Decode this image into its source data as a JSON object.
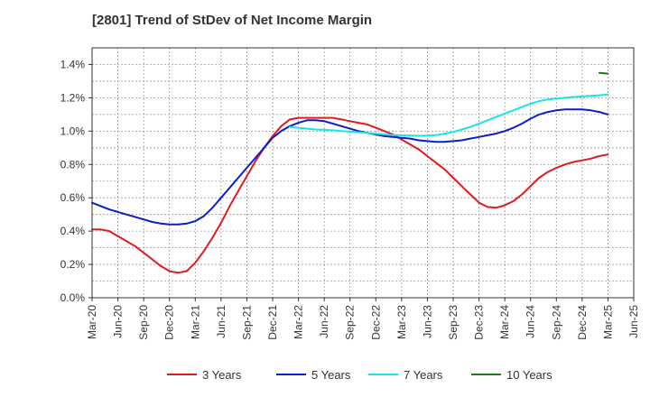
{
  "chart_data": {
    "type": "line",
    "title": "[2801]  Trend of StDev of Net Income Margin",
    "xlabel": "",
    "ylabel": "",
    "x_ticks": [
      "Mar-20",
      "Jun-20",
      "Sep-20",
      "Dec-20",
      "Mar-21",
      "Jun-21",
      "Sep-21",
      "Dec-21",
      "Mar-22",
      "Jun-22",
      "Sep-22",
      "Dec-22",
      "Mar-23",
      "Jun-23",
      "Sep-23",
      "Dec-23",
      "Mar-24",
      "Jun-24",
      "Sep-24",
      "Dec-24",
      "Mar-25",
      "Jun-25"
    ],
    "y_ticks": [
      "0.0%",
      "0.2%",
      "0.4%",
      "0.6%",
      "0.8%",
      "1.0%",
      "1.2%",
      "1.4%"
    ],
    "ylim": [
      0,
      1.5
    ],
    "y_unit": "%",
    "grid": true,
    "legend_position": "bottom",
    "series": [
      {
        "name": "3 Years",
        "color": "#e31a1c",
        "points": [
          [
            "Mar-20",
            0.41
          ],
          [
            "Apr-20",
            0.41
          ],
          [
            "May-20",
            0.4
          ],
          [
            "Jun-20",
            0.37
          ],
          [
            "Jul-20",
            0.34
          ],
          [
            "Aug-20",
            0.31
          ],
          [
            "Sep-20",
            0.27
          ],
          [
            "Oct-20",
            0.23
          ],
          [
            "Nov-20",
            0.19
          ],
          [
            "Dec-20",
            0.16
          ],
          [
            "Jan-21",
            0.15
          ],
          [
            "Feb-21",
            0.16
          ],
          [
            "Mar-21",
            0.21
          ],
          [
            "Apr-21",
            0.28
          ],
          [
            "May-21",
            0.36
          ],
          [
            "Jun-21",
            0.45
          ],
          [
            "Jul-21",
            0.55
          ],
          [
            "Aug-21",
            0.64
          ],
          [
            "Sep-21",
            0.73
          ],
          [
            "Oct-21",
            0.82
          ],
          [
            "Nov-21",
            0.9
          ],
          [
            "Dec-21",
            0.97
          ],
          [
            "Jan-22",
            1.03
          ],
          [
            "Feb-22",
            1.07
          ],
          [
            "Mar-22",
            1.08
          ],
          [
            "Apr-22",
            1.08
          ],
          [
            "May-22",
            1.08
          ],
          [
            "Jun-22",
            1.08
          ],
          [
            "Jul-22",
            1.08
          ],
          [
            "Aug-22",
            1.07
          ],
          [
            "Sep-22",
            1.06
          ],
          [
            "Oct-22",
            1.05
          ],
          [
            "Nov-22",
            1.04
          ],
          [
            "Dec-22",
            1.02
          ],
          [
            "Jan-23",
            1.0
          ],
          [
            "Feb-23",
            0.98
          ],
          [
            "Mar-23",
            0.95
          ],
          [
            "Apr-23",
            0.92
          ],
          [
            "May-23",
            0.89
          ],
          [
            "Jun-23",
            0.85
          ],
          [
            "Jul-23",
            0.81
          ],
          [
            "Aug-23",
            0.77
          ],
          [
            "Sep-23",
            0.72
          ],
          [
            "Oct-23",
            0.67
          ],
          [
            "Nov-23",
            0.62
          ],
          [
            "Dec-23",
            0.57
          ],
          [
            "Jan-24",
            0.545
          ],
          [
            "Feb-24",
            0.54
          ],
          [
            "Mar-24",
            0.555
          ],
          [
            "Apr-24",
            0.58
          ],
          [
            "May-24",
            0.62
          ],
          [
            "Jun-24",
            0.67
          ],
          [
            "Jul-24",
            0.72
          ],
          [
            "Aug-24",
            0.755
          ],
          [
            "Sep-24",
            0.78
          ],
          [
            "Oct-24",
            0.8
          ],
          [
            "Nov-24",
            0.815
          ],
          [
            "Dec-24",
            0.825
          ],
          [
            "Jan-25",
            0.835
          ],
          [
            "Feb-25",
            0.85
          ],
          [
            "Mar-25",
            0.86
          ]
        ]
      },
      {
        "name": "5 Years",
        "color": "#0a1ecc",
        "points": [
          [
            "Mar-20",
            0.57
          ],
          [
            "Apr-20",
            0.55
          ],
          [
            "May-20",
            0.53
          ],
          [
            "Jun-20",
            0.515
          ],
          [
            "Jul-20",
            0.5
          ],
          [
            "Aug-20",
            0.485
          ],
          [
            "Sep-20",
            0.47
          ],
          [
            "Oct-20",
            0.455
          ],
          [
            "Nov-20",
            0.445
          ],
          [
            "Dec-20",
            0.44
          ],
          [
            "Jan-21",
            0.44
          ],
          [
            "Feb-21",
            0.445
          ],
          [
            "Mar-21",
            0.46
          ],
          [
            "Apr-21",
            0.49
          ],
          [
            "May-21",
            0.54
          ],
          [
            "Jun-21",
            0.6
          ],
          [
            "Jul-21",
            0.66
          ],
          [
            "Aug-21",
            0.72
          ],
          [
            "Sep-21",
            0.78
          ],
          [
            "Oct-21",
            0.84
          ],
          [
            "Nov-21",
            0.9
          ],
          [
            "Dec-21",
            0.96
          ],
          [
            "Jan-22",
            1.0
          ],
          [
            "Feb-22",
            1.03
          ],
          [
            "Mar-22",
            1.05
          ],
          [
            "Apr-22",
            1.065
          ],
          [
            "May-22",
            1.065
          ],
          [
            "Jun-22",
            1.06
          ],
          [
            "Jul-22",
            1.045
          ],
          [
            "Aug-22",
            1.03
          ],
          [
            "Sep-22",
            1.015
          ],
          [
            "Oct-22",
            1.0
          ],
          [
            "Nov-22",
            0.99
          ],
          [
            "Dec-22",
            0.98
          ],
          [
            "Jan-23",
            0.97
          ],
          [
            "Feb-23",
            0.965
          ],
          [
            "Mar-23",
            0.96
          ],
          [
            "Apr-23",
            0.955
          ],
          [
            "May-23",
            0.945
          ],
          [
            "Jun-23",
            0.94
          ],
          [
            "Jul-23",
            0.935
          ],
          [
            "Aug-23",
            0.935
          ],
          [
            "Sep-23",
            0.94
          ],
          [
            "Oct-23",
            0.945
          ],
          [
            "Nov-23",
            0.955
          ],
          [
            "Dec-23",
            0.965
          ],
          [
            "Jan-24",
            0.975
          ],
          [
            "Feb-24",
            0.985
          ],
          [
            "Mar-24",
            1.0
          ],
          [
            "Apr-24",
            1.02
          ],
          [
            "May-24",
            1.045
          ],
          [
            "Jun-24",
            1.075
          ],
          [
            "Jul-24",
            1.1
          ],
          [
            "Aug-24",
            1.115
          ],
          [
            "Sep-24",
            1.125
          ],
          [
            "Oct-24",
            1.13
          ],
          [
            "Nov-24",
            1.13
          ],
          [
            "Dec-24",
            1.13
          ],
          [
            "Jan-25",
            1.125
          ],
          [
            "Feb-25",
            1.115
          ],
          [
            "Mar-25",
            1.1
          ]
        ]
      },
      {
        "name": "7 Years",
        "color": "#17e6e6",
        "points": [
          [
            "Feb-22",
            1.025
          ],
          [
            "Mar-22",
            1.02
          ],
          [
            "Apr-22",
            1.015
          ],
          [
            "May-22",
            1.01
          ],
          [
            "Jun-22",
            1.008
          ],
          [
            "Jul-22",
            1.005
          ],
          [
            "Aug-22",
            1.0
          ],
          [
            "Sep-22",
            0.997
          ],
          [
            "Oct-22",
            0.993
          ],
          [
            "Nov-22",
            0.99
          ],
          [
            "Dec-22",
            0.985
          ],
          [
            "Jan-23",
            0.98
          ],
          [
            "Feb-23",
            0.977
          ],
          [
            "Mar-23",
            0.975
          ],
          [
            "Apr-23",
            0.973
          ],
          [
            "May-23",
            0.972
          ],
          [
            "Jun-23",
            0.973
          ],
          [
            "Jul-23",
            0.976
          ],
          [
            "Aug-23",
            0.985
          ],
          [
            "Sep-23",
            0.995
          ],
          [
            "Oct-23",
            1.01
          ],
          [
            "Nov-23",
            1.025
          ],
          [
            "Dec-23",
            1.045
          ],
          [
            "Jan-24",
            1.065
          ],
          [
            "Feb-24",
            1.085
          ],
          [
            "Mar-24",
            1.105
          ],
          [
            "Apr-24",
            1.125
          ],
          [
            "May-24",
            1.145
          ],
          [
            "Jun-24",
            1.165
          ],
          [
            "Jul-24",
            1.18
          ],
          [
            "Aug-24",
            1.19
          ],
          [
            "Sep-24",
            1.195
          ],
          [
            "Oct-24",
            1.2
          ],
          [
            "Nov-24",
            1.205
          ],
          [
            "Dec-24",
            1.208
          ],
          [
            "Jan-25",
            1.212
          ],
          [
            "Feb-25",
            1.215
          ],
          [
            "Mar-25",
            1.22
          ]
        ]
      },
      {
        "name": "10 Years",
        "color": "#1f7a1f",
        "points": [
          [
            "Feb-25",
            1.35
          ],
          [
            "Mar-25",
            1.345
          ]
        ]
      }
    ]
  }
}
